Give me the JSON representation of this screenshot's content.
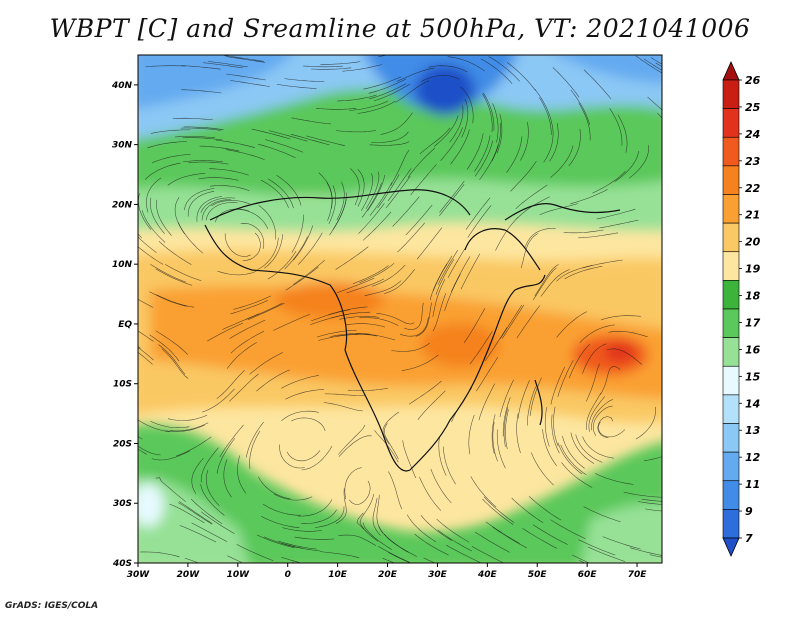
{
  "title": "WBPT [C] and Sreamline at 500hPa, VT: 2021041006",
  "credit": "GrADS: IGES/COLA",
  "map": {
    "lat_labels": [
      "40N",
      "30N",
      "20N",
      "10N",
      "EQ",
      "10S",
      "20S",
      "30S",
      "40S"
    ],
    "lon_labels": [
      "30W",
      "20W",
      "10W",
      "0",
      "10E",
      "20E",
      "30E",
      "40E",
      "50E",
      "60E",
      "70E"
    ],
    "lat_range": [
      -40,
      45
    ],
    "lon_range": [
      -30,
      75
    ]
  },
  "colorbar": {
    "labels": [
      "26",
      "25",
      "24",
      "23",
      "22",
      "21",
      "20",
      "19",
      "18",
      "17",
      "16",
      "15",
      "14",
      "13",
      "12",
      "11",
      "9",
      "7"
    ],
    "colors": [
      "#a50f0f",
      "#c81e14",
      "#e1321e",
      "#f05a1e",
      "#f5821e",
      "#faa032",
      "#fac864",
      "#fde6a0",
      "#3cb43c",
      "#5ac85a",
      "#96e196",
      "#e6faff",
      "#b4e1fa",
      "#8cc8f5",
      "#64aaf0",
      "#418ce6",
      "#2d6edc",
      "#1e50c8"
    ]
  }
}
